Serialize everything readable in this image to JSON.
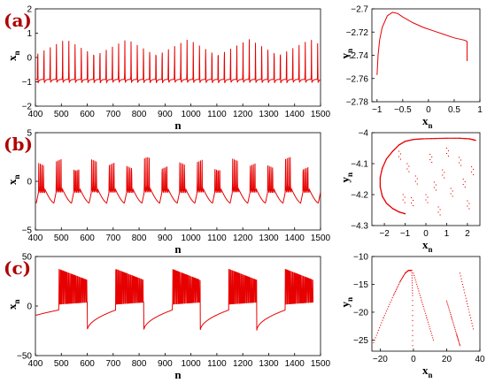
{
  "panel_labels": [
    "(a)",
    "(b)",
    "(c)"
  ],
  "chart_data": [
    {
      "panel": "(a)",
      "kind": "time",
      "type": "line",
      "xlabel": "n",
      "ylabel_base": "x",
      "ylabel_sub": "n",
      "xlim": [
        400,
        1500
      ],
      "ylim": [
        -2,
        2
      ],
      "xticks": [
        400,
        500,
        600,
        700,
        800,
        900,
        1000,
        1100,
        1200,
        1300,
        1400,
        1500
      ],
      "yticks": [
        -2,
        -1,
        0,
        1,
        2
      ],
      "pattern": "single spikes",
      "spike_period": 24,
      "spike_count": 46,
      "baseline": -0.9,
      "spike_peak": 0.75,
      "trough": -1.05
    },
    {
      "panel": "(a)",
      "kind": "phase",
      "type": "line",
      "xlabel_base": "x",
      "xlabel_sub": "n",
      "ylabel_base": "y",
      "ylabel_sub": "n",
      "xlim": [
        -1.1,
        1
      ],
      "ylim": [
        -2.78,
        -2.7
      ],
      "xticks": [
        -1,
        -0.5,
        0,
        0.5,
        1
      ],
      "yticks": [
        -2.78,
        -2.76,
        -2.74,
        -2.72,
        -2.7
      ],
      "curve": {
        "x": [
          -1.0,
          -0.98,
          -0.95,
          -0.9,
          -0.8,
          -0.7,
          -0.6,
          -0.5,
          -0.3,
          -0.1,
          0.1,
          0.3,
          0.5,
          0.7,
          0.75
        ],
        "y": [
          -2.757,
          -2.74,
          -2.727,
          -2.716,
          -2.706,
          -2.703,
          -2.704,
          -2.707,
          -2.712,
          -2.716,
          -2.719,
          -2.722,
          -2.725,
          -2.727,
          -2.728
        ]
      },
      "jump": {
        "x": 0.75,
        "y": [
          -2.728,
          -2.745
        ]
      }
    },
    {
      "panel": "(b)",
      "kind": "time",
      "type": "line",
      "xlabel": "n",
      "ylabel_base": "x",
      "ylabel_sub": "n",
      "xlim": [
        400,
        1500
      ],
      "ylim": [
        -5,
        5
      ],
      "xticks": [
        400,
        500,
        600,
        700,
        800,
        900,
        1000,
        1100,
        1200,
        1300,
        1400,
        1500
      ],
      "yticks": [
        -5,
        0,
        5
      ],
      "pattern": "bursts",
      "burst_period": 68,
      "burst_count": 16,
      "spikes_per_burst": 4,
      "spike_peak": 2.5,
      "spike_trough": -0.8,
      "quiescent_level": -2.3
    },
    {
      "panel": "(b)",
      "kind": "phase",
      "type": "scatter",
      "xlabel_base": "x",
      "xlabel_sub": "n",
      "ylabel_base": "y",
      "ylabel_sub": "n",
      "xlim": [
        -2.6,
        2.6
      ],
      "ylim": [
        -4.3,
        -4
      ],
      "xticks": [
        -2,
        -1,
        0,
        1,
        2
      ],
      "yticks": [
        -4.3,
        -4.2,
        -4.1,
        -4
      ],
      "orbit": {
        "x": [
          -1.0,
          -1.3,
          -1.6,
          -1.9,
          -2.1,
          -2.2,
          -2.2,
          -2.1,
          -1.9,
          -1.6,
          -1.3,
          -1.0,
          -0.6,
          -0.2,
          0.4,
          1.0,
          1.6,
          2.1,
          2.4
        ],
        "y": [
          -4.262,
          -4.256,
          -4.245,
          -4.228,
          -4.205,
          -4.175,
          -4.145,
          -4.115,
          -4.085,
          -4.06,
          -4.04,
          -4.028,
          -4.022,
          -4.02,
          -4.019,
          -4.018,
          -4.018,
          -4.02,
          -4.025
        ]
      }
    },
    {
      "panel": "(c)",
      "kind": "time",
      "type": "line",
      "xlabel": "n",
      "ylabel_base": "x",
      "ylabel_sub": "n",
      "xlim": [
        400,
        1500
      ],
      "ylim": [
        -50,
        50
      ],
      "xticks": [
        400,
        500,
        600,
        700,
        800,
        900,
        1000,
        1100,
        1200,
        1300,
        1400,
        1500
      ],
      "yticks": [
        -50,
        0,
        50
      ],
      "pattern": "square bursts",
      "bursts": [
        [
          490,
          600
        ],
        [
          710,
          818
        ],
        [
          928,
          1036
        ],
        [
          1146,
          1254
        ],
        [
          1364,
          1472
        ]
      ],
      "peak": 37,
      "plateau_low": 2,
      "top_end": 26,
      "drop_level": -25,
      "pre_burst_level": -4
    },
    {
      "panel": "(c)",
      "kind": "phase",
      "type": "scatter",
      "xlabel_base": "x",
      "xlabel_sub": "n",
      "ylabel_base": "y",
      "ylabel_sub": "n",
      "xlim": [
        -25,
        40
      ],
      "ylim": [
        -27,
        -10
      ],
      "xticks": [
        -20,
        0,
        20,
        40
      ],
      "yticks": [
        -25,
        -20,
        -15,
        -10
      ],
      "branches": [
        {
          "x": [
            -24,
            -18,
            -12,
            -8,
            -5,
            -3
          ],
          "y": [
            -25.5,
            -21,
            -17,
            -14.5,
            -13,
            -12.5
          ]
        },
        {
          "x": [
            -3,
            -1,
            -0.5,
            -0.5
          ],
          "y": [
            -12.5,
            -12.5,
            -17,
            -26
          ]
        },
        {
          "x": [
            0,
            4,
            8,
            12
          ],
          "y": [
            -13,
            -17,
            -21,
            -25
          ]
        },
        {
          "x": [
            28,
            32,
            36
          ],
          "y": [
            -13,
            -18,
            -23
          ]
        },
        {
          "x": [
            20,
            23,
            26,
            28
          ],
          "y": [
            -18,
            -21,
            -24,
            -26
          ]
        }
      ]
    }
  ]
}
